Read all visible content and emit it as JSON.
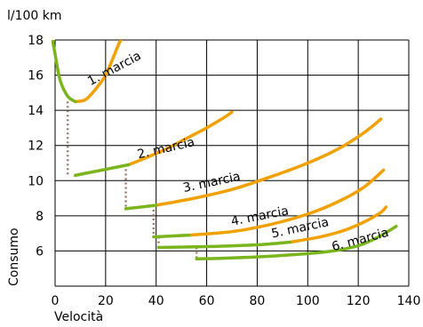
{
  "chart_data": {
    "type": "line",
    "title": "",
    "xlabel": "Velocità",
    "ylabel": "Consumo",
    "y_unit": "l/100 km",
    "xlim": [
      0,
      140
    ],
    "ylim": [
      4,
      18
    ],
    "x_ticks": [
      0,
      20,
      40,
      60,
      80,
      100,
      120,
      140
    ],
    "y_ticks": [
      6,
      8,
      10,
      12,
      14,
      16,
      18
    ],
    "grid": true,
    "colors": {
      "efficient": "#7ab51d",
      "inefficient": "#f0a100",
      "shift": "#9a7a6a",
      "grid": "#000000"
    },
    "series": [
      {
        "name": "1. marcia",
        "label_at": [
          14,
          15.4
        ],
        "green": [
          [
            -1,
            18
          ],
          [
            0,
            17.2
          ],
          [
            2,
            15.7
          ],
          [
            5,
            14.8
          ],
          [
            8,
            14.5
          ]
        ],
        "orange": [
          [
            8,
            14.5
          ],
          [
            12,
            14.6
          ],
          [
            16,
            15.2
          ],
          [
            20,
            16.0
          ],
          [
            23,
            17.0
          ],
          [
            25,
            17.7
          ],
          [
            26,
            18
          ]
        ]
      },
      {
        "name": "2. marcia",
        "label_at": [
          33,
          11.25
        ],
        "green": [
          [
            8,
            10.3
          ],
          [
            15,
            10.5
          ],
          [
            22,
            10.7
          ],
          [
            29,
            10.9
          ]
        ],
        "orange": [
          [
            29,
            10.9
          ],
          [
            36,
            11.3
          ],
          [
            44,
            11.8
          ],
          [
            52,
            12.4
          ],
          [
            60,
            13.0
          ],
          [
            67,
            13.6
          ],
          [
            70,
            13.9
          ]
        ]
      },
      {
        "name": "3. marcia",
        "label_at": [
          51,
          9.35
        ],
        "green": [
          [
            28,
            8.4
          ],
          [
            40,
            8.6
          ]
        ],
        "orange": [
          [
            40,
            8.6
          ],
          [
            55,
            9.0
          ],
          [
            70,
            9.5
          ],
          [
            85,
            10.2
          ],
          [
            100,
            11.0
          ],
          [
            112,
            11.8
          ],
          [
            122,
            12.7
          ],
          [
            129,
            13.5
          ]
        ]
      },
      {
        "name": "4. marcia",
        "label_at": [
          70,
          7.45
        ],
        "green": [
          [
            39,
            6.8
          ],
          [
            53,
            6.9
          ]
        ],
        "orange": [
          [
            53,
            6.9
          ],
          [
            70,
            7.1
          ],
          [
            85,
            7.5
          ],
          [
            100,
            8.1
          ],
          [
            112,
            8.8
          ],
          [
            122,
            9.6
          ],
          [
            130,
            10.6
          ]
        ]
      },
      {
        "name": "5. marcia",
        "label_at": [
          86,
          6.75
        ],
        "green": [
          [
            41,
            6.2
          ],
          [
            60,
            6.25
          ],
          [
            80,
            6.35
          ],
          [
            93,
            6.5
          ]
        ],
        "orange": [
          [
            93,
            6.5
          ],
          [
            105,
            6.8
          ],
          [
            115,
            7.2
          ],
          [
            123,
            7.7
          ],
          [
            129,
            8.2
          ],
          [
            131,
            8.5
          ]
        ]
      },
      {
        "name": "6. marcia",
        "label_at": [
          110,
          6.0
        ],
        "green": [
          [
            56,
            5.55
          ],
          [
            70,
            5.6
          ],
          [
            85,
            5.7
          ],
          [
            100,
            5.85
          ],
          [
            110,
            6.0
          ],
          [
            120,
            6.3
          ],
          [
            128,
            6.8
          ],
          [
            135,
            7.4
          ]
        ],
        "orange": []
      }
    ],
    "shift_lines": [
      [
        [
          5,
          14.5
        ],
        [
          5,
          10.3
        ]
      ],
      [
        [
          28,
          10.9
        ],
        [
          28,
          8.4
        ]
      ],
      [
        [
          39,
          8.6
        ],
        [
          39,
          6.8
        ]
      ],
      [
        [
          41,
          6.8
        ],
        [
          41,
          6.2
        ]
      ],
      [
        [
          56,
          6.2
        ],
        [
          56,
          5.55
        ]
      ]
    ]
  }
}
